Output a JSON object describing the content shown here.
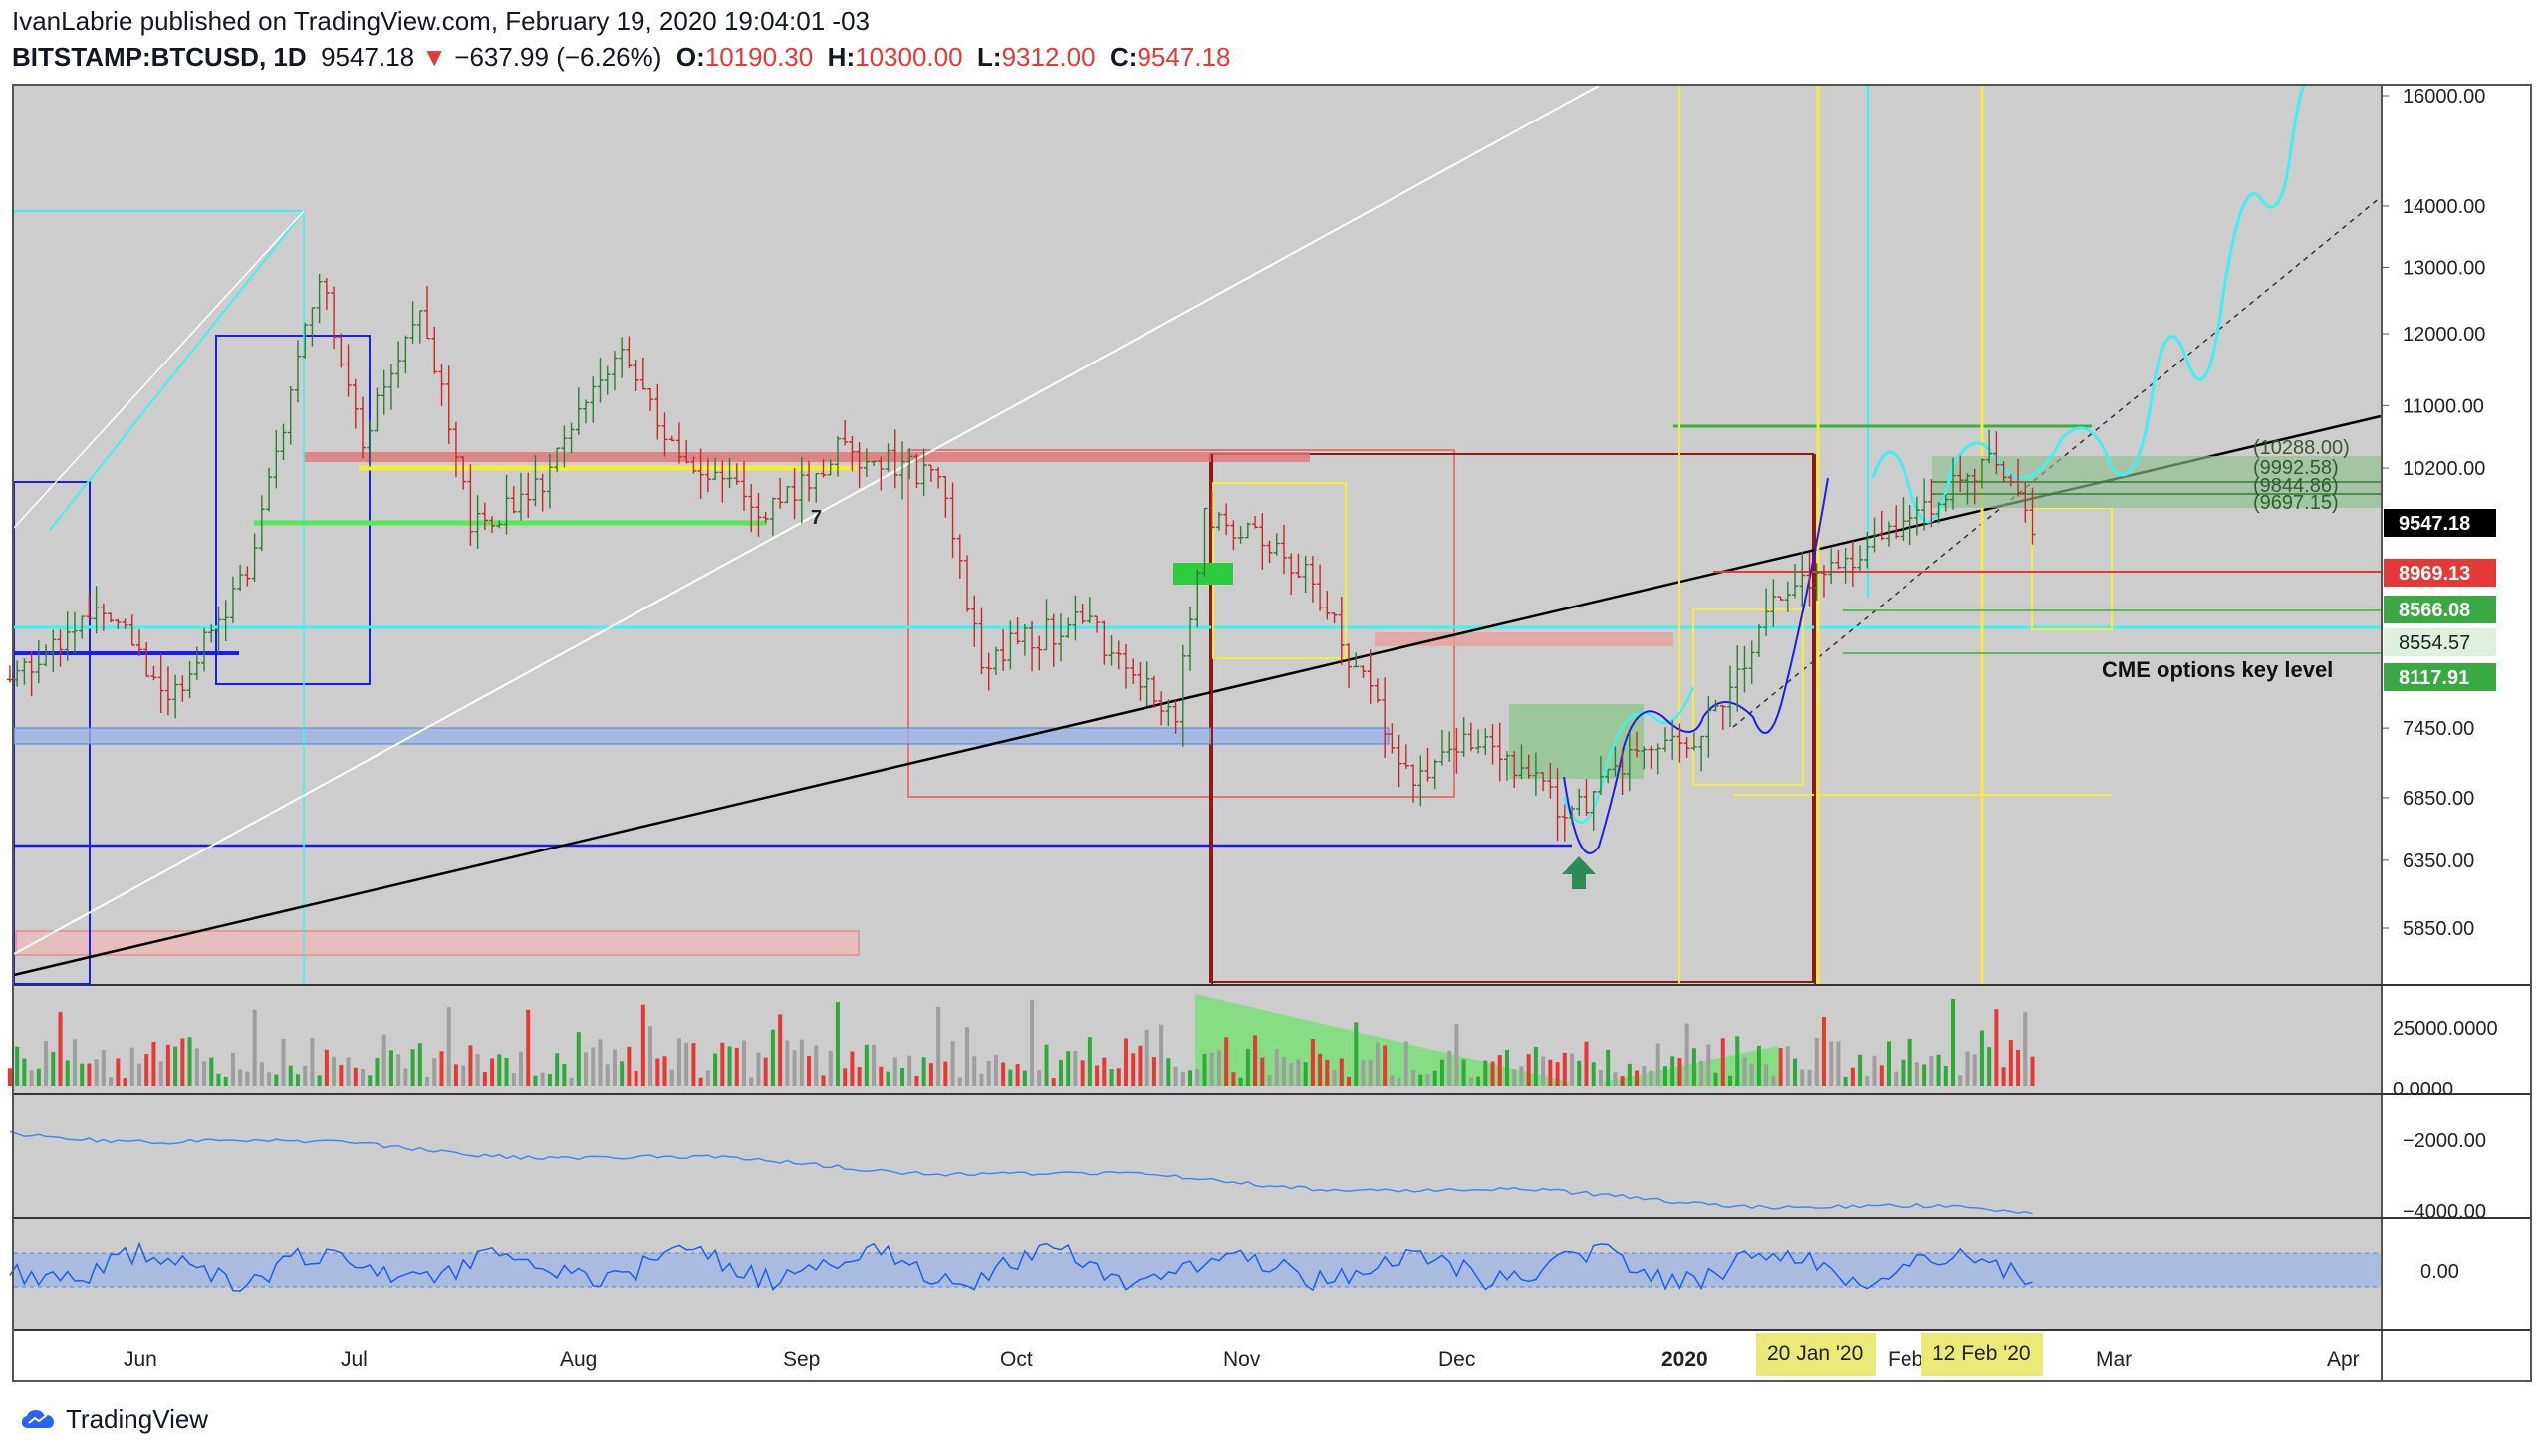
{
  "header": {
    "author_line": "IvanLabrie published on TradingView.com, February 19, 2020 19:04:01 -03",
    "symbol": "BITSTAMP:BTCUSD, 1D",
    "last": "9547.18",
    "change_arrow": "▼",
    "change": "−637.99 (−6.26%)",
    "o_label": "O:",
    "o": "10190.30",
    "h_label": "H:",
    "h": "10300.00",
    "l_label": "L:",
    "l": "9312.00",
    "c_label": "C:",
    "c": "9547.18"
  },
  "footer": {
    "brand": "TradingView",
    "logo_icon": "tradingview-logo-icon"
  },
  "colors": {
    "background": "#cdcdcd",
    "up": "#2e7d32",
    "down": "#c62828",
    "cyan": "#3ff2f2",
    "yellow": "#f5ec3a",
    "blue": "#1d1de8",
    "black": "#000000"
  },
  "chart_data": {
    "type": "candlestick",
    "price_axis": {
      "ticks": [
        "16000.00",
        "14000.00",
        "13000.00",
        "12000.00",
        "11000.00",
        "10200.00",
        "7450.00",
        "6850.00",
        "6350.00",
        "5850.00"
      ],
      "scale": "log"
    },
    "price_labels": [
      {
        "text": "9547.18",
        "style": "black"
      },
      {
        "text": "8969.13",
        "style": "red"
      },
      {
        "text": "8566.08",
        "style": "green"
      },
      {
        "text": "8554.57",
        "style": "light"
      },
      {
        "text": "8117.91",
        "style": "green"
      }
    ],
    "level_annotations": [
      "(10288.00)",
      "(9992.58)",
      "(9844.86)",
      "(9697.15)"
    ],
    "annotation": "CME options key level",
    "marker_text": "7",
    "volume_axis": {
      "ticks": [
        "25000.0000",
        "0.0000"
      ]
    },
    "indicator1_axis": {
      "ticks": [
        "−2000.00",
        "−4000.00"
      ]
    },
    "indicator2_axis": {
      "ticks": [
        "0.00"
      ]
    },
    "x_axis": {
      "labels": [
        "Jun",
        "Jul",
        "Aug",
        "Sep",
        "Oct",
        "Nov",
        "Dec",
        "2020",
        "Feb",
        "Mar",
        "Apr"
      ],
      "highlighted": [
        "20 Jan '20",
        "12 Feb '20"
      ]
    },
    "series_anchors": [
      {
        "date": "2019-05-14",
        "close": 7900
      },
      {
        "date": "2019-05-27",
        "close": 8700
      },
      {
        "date": "2019-06-05",
        "close": 7700
      },
      {
        "date": "2019-06-16",
        "close": 9000
      },
      {
        "date": "2019-06-26",
        "close": 13000
      },
      {
        "date": "2019-07-02",
        "close": 10600
      },
      {
        "date": "2019-07-10",
        "close": 12500
      },
      {
        "date": "2019-07-17",
        "close": 9500
      },
      {
        "date": "2019-07-26",
        "close": 9900
      },
      {
        "date": "2019-08-06",
        "close": 11800
      },
      {
        "date": "2019-08-16",
        "close": 10200
      },
      {
        "date": "2019-08-28",
        "close": 9700
      },
      {
        "date": "2019-09-06",
        "close": 10400
      },
      {
        "date": "2019-09-20",
        "close": 10100
      },
      {
        "date": "2019-09-26",
        "close": 8100
      },
      {
        "date": "2019-10-10",
        "close": 8500
      },
      {
        "date": "2019-10-23",
        "close": 7500
      },
      {
        "date": "2019-10-27",
        "close": 9700
      },
      {
        "date": "2019-11-10",
        "close": 9000
      },
      {
        "date": "2019-11-25",
        "close": 7000
      },
      {
        "date": "2019-12-05",
        "close": 7400
      },
      {
        "date": "2019-12-17",
        "close": 6700
      },
      {
        "date": "2019-12-27",
        "close": 7250
      },
      {
        "date": "2020-01-03",
        "close": 7300
      },
      {
        "date": "2020-01-15",
        "close": 8800
      },
      {
        "date": "2020-01-28",
        "close": 9300
      },
      {
        "date": "2020-02-10",
        "close": 10100
      },
      {
        "date": "2020-02-14",
        "close": 10300
      },
      {
        "date": "2020-02-19",
        "close": 9547
      }
    ]
  }
}
